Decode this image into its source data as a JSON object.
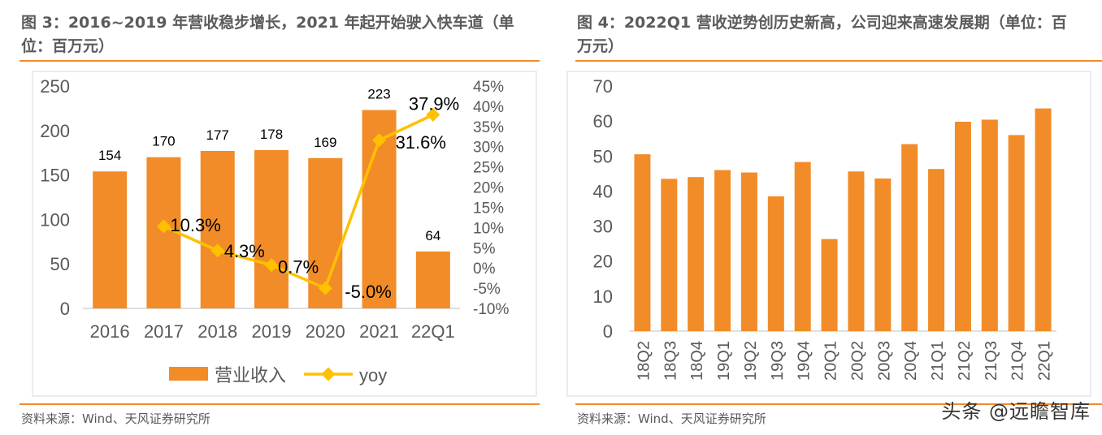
{
  "left": {
    "title": "图 3：2016~2019 年营收稳步增长，2021 年起开始驶入快车道（单位：百万元）",
    "source": "资料来源：Wind、天风证券研究所",
    "chart_data": {
      "type": "bar",
      "categories": [
        "2016",
        "2017",
        "2018",
        "2019",
        "2020",
        "2021",
        "22Q1"
      ],
      "series": [
        {
          "name": "营业收入",
          "type": "bar",
          "axis": "left",
          "values": [
            154,
            170,
            177,
            178,
            169,
            223,
            64
          ],
          "labels": [
            "154",
            "170",
            "177",
            "178",
            "169",
            "223",
            "64"
          ]
        },
        {
          "name": "yoy",
          "type": "line",
          "axis": "right",
          "values": [
            null,
            10.3,
            4.3,
            0.7,
            -5.0,
            31.6,
            37.9
          ],
          "labels": [
            "",
            "10.3%",
            "4.3%",
            "0.7%",
            "-5.0%",
            "31.6%",
            "37.9%"
          ]
        }
      ],
      "ylim": [
        0,
        250
      ],
      "yticks": [
        "0",
        "50",
        "100",
        "150",
        "200",
        "250"
      ],
      "y2lim": [
        -10,
        45
      ],
      "y2ticks": [
        "-10%",
        "-5%",
        "0%",
        "5%",
        "10%",
        "15%",
        "20%",
        "25%",
        "30%",
        "35%",
        "40%",
        "45%"
      ],
      "legend": [
        "营业收入",
        "yoy"
      ],
      "colors": {
        "bar": "#f28c28",
        "line": "#ffc000"
      }
    }
  },
  "right": {
    "title": "图 4：2022Q1 营收逆势创历史新高，公司迎来高速发展期（单位：百万元）",
    "source": "资料来源：Wind、天风证券研究所",
    "chart_data": {
      "type": "bar",
      "categories": [
        "18Q2",
        "18Q3",
        "18Q4",
        "19Q1",
        "19Q2",
        "19Q3",
        "19Q4",
        "20Q1",
        "20Q2",
        "20Q3",
        "20Q4",
        "21Q1",
        "21Q2",
        "21Q3",
        "21Q4",
        "22Q1"
      ],
      "values": [
        50.5,
        43.5,
        44,
        46,
        45.3,
        38.5,
        48.3,
        26.3,
        45.6,
        43.6,
        53.4,
        46.3,
        59.8,
        60.4,
        56,
        63.6
      ],
      "ylim": [
        0,
        70
      ],
      "yticks": [
        "0",
        "10",
        "20",
        "30",
        "40",
        "50",
        "60",
        "70"
      ],
      "colors": {
        "bar": "#f28c28"
      }
    }
  },
  "watermark": "头条 @远瞻智库"
}
